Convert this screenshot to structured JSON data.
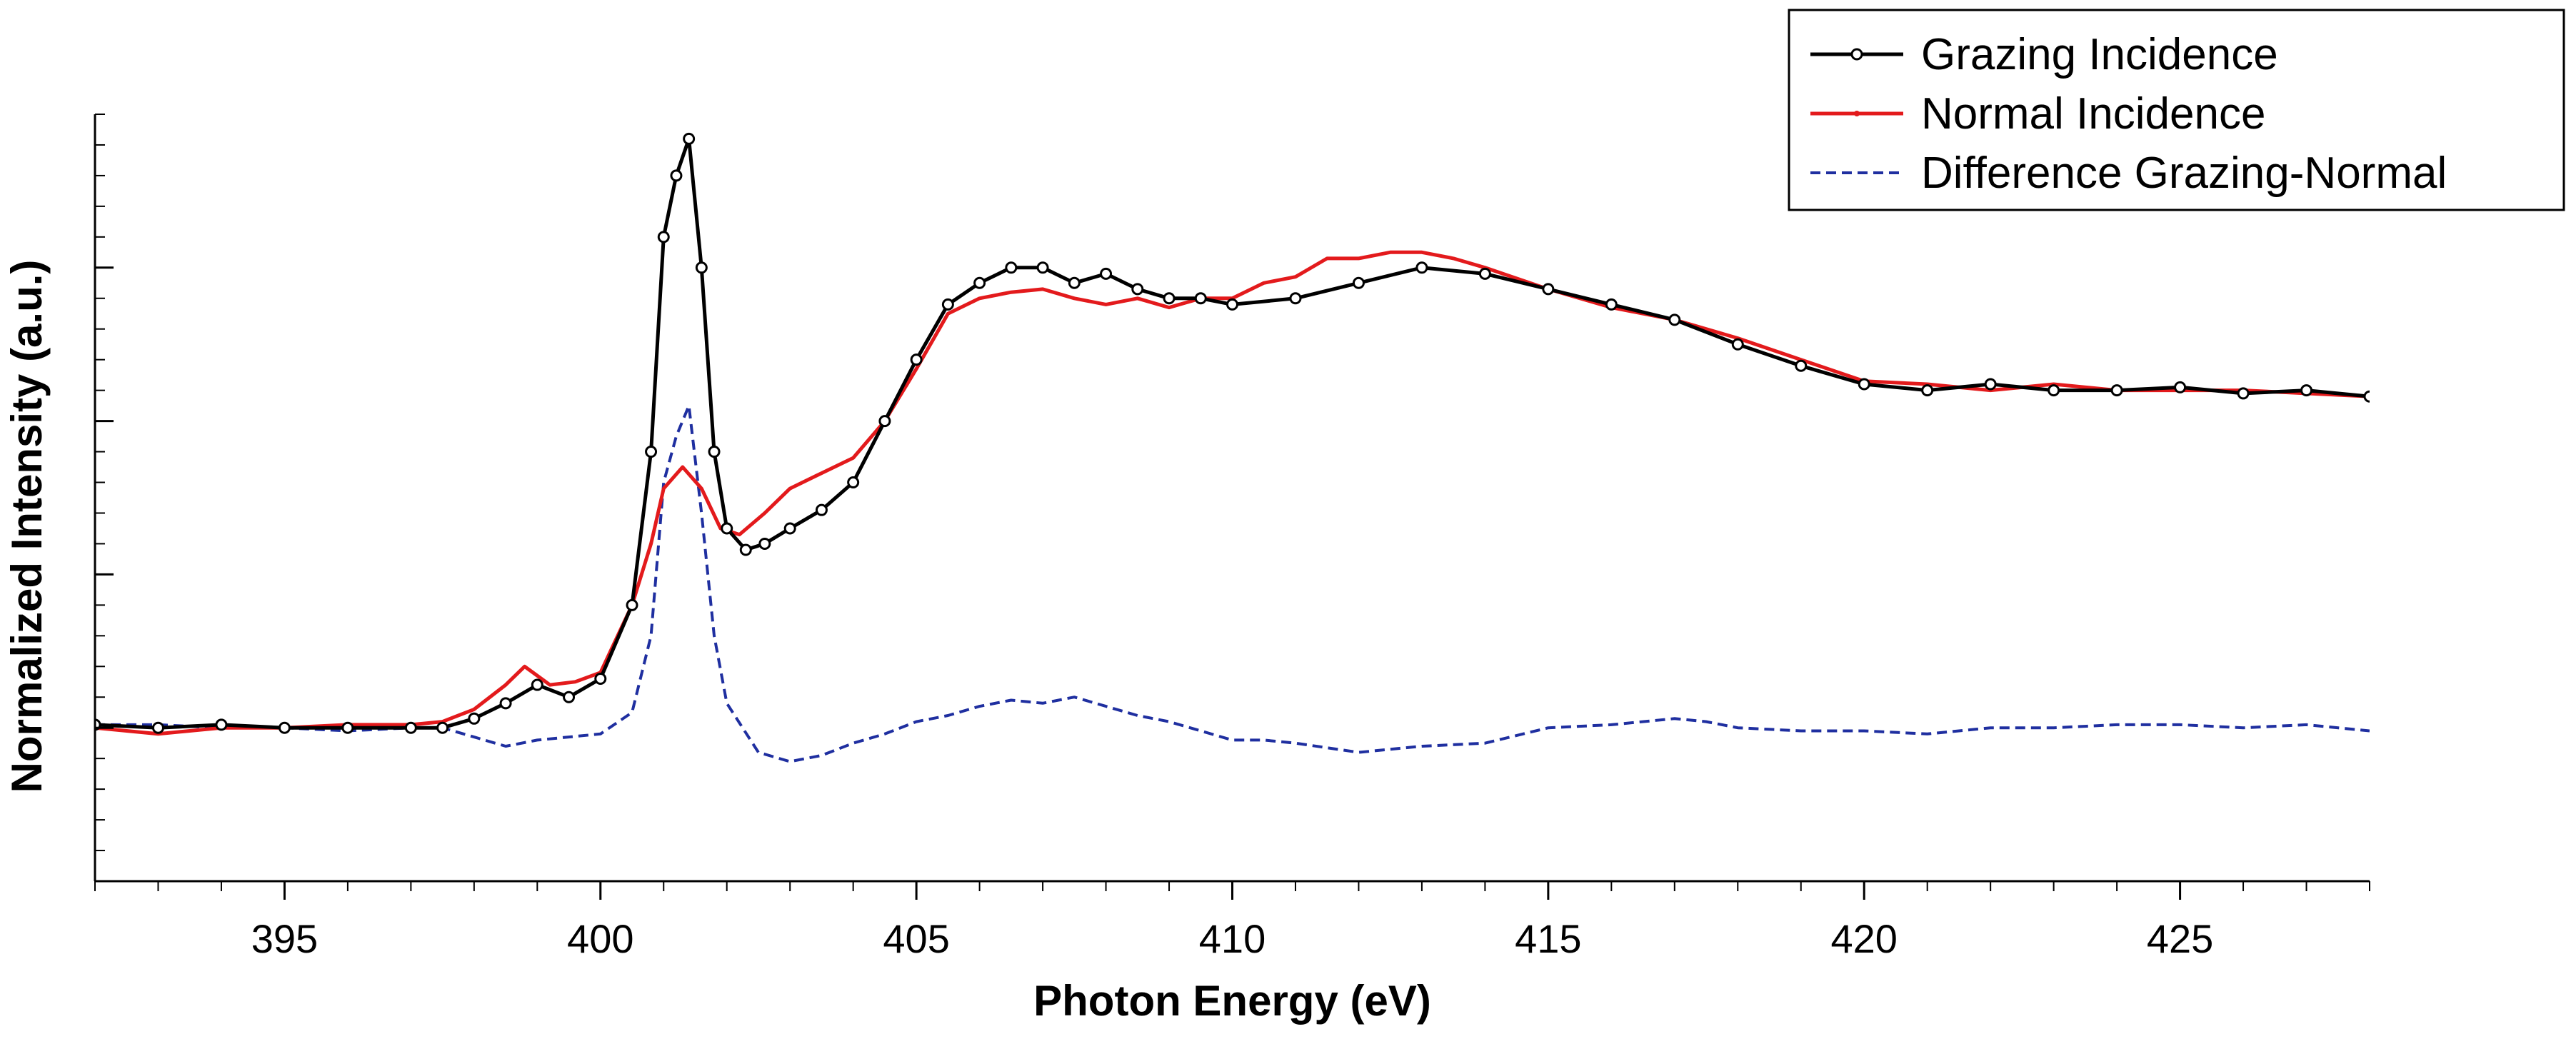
{
  "chart_data": {
    "type": "line",
    "title": "",
    "xlabel": "Photon Energy (eV)",
    "ylabel": "Normalized Intensity (a.u.)",
    "xlim": [
      392,
      428
    ],
    "ylim": [
      -0.5,
      2.0
    ],
    "xticks": [
      395,
      400,
      405,
      410,
      415,
      420,
      425
    ],
    "xtick_labels": [
      "395",
      "400",
      "405",
      "410",
      "415",
      "420",
      "425"
    ],
    "x_minor_step": 1,
    "yticks": [
      0,
      0.5,
      1.0,
      1.5
    ],
    "y_minor_step": 0.1,
    "y_tick_labels_shown": false,
    "grid": false,
    "legend_position": "top-right",
    "series": [
      {
        "name": "Grazing Incidence",
        "color": "#000000",
        "dash": "solid",
        "marker": "open-circle",
        "points": [
          [
            392.0,
            0.01
          ],
          [
            393.0,
            0.0
          ],
          [
            394.0,
            0.01
          ],
          [
            395.0,
            0.0
          ],
          [
            396.0,
            0.0
          ],
          [
            397.0,
            0.0
          ],
          [
            397.5,
            0.0
          ],
          [
            398.0,
            0.03
          ],
          [
            398.5,
            0.08
          ],
          [
            399.0,
            0.14
          ],
          [
            399.5,
            0.1
          ],
          [
            400.0,
            0.16
          ],
          [
            400.5,
            0.4
          ],
          [
            400.8,
            0.9
          ],
          [
            401.0,
            1.6
          ],
          [
            401.2,
            1.8
          ],
          [
            401.4,
            1.92
          ],
          [
            401.6,
            1.5
          ],
          [
            401.8,
            0.9
          ],
          [
            402.0,
            0.65
          ],
          [
            402.3,
            0.58
          ],
          [
            402.6,
            0.6
          ],
          [
            403.0,
            0.65
          ],
          [
            403.5,
            0.71
          ],
          [
            404.0,
            0.8
          ],
          [
            404.5,
            1.0
          ],
          [
            405.0,
            1.2
          ],
          [
            405.5,
            1.38
          ],
          [
            406.0,
            1.45
          ],
          [
            406.5,
            1.5
          ],
          [
            407.0,
            1.5
          ],
          [
            407.5,
            1.45
          ],
          [
            408.0,
            1.48
          ],
          [
            408.5,
            1.43
          ],
          [
            409.0,
            1.4
          ],
          [
            409.5,
            1.4
          ],
          [
            410.0,
            1.38
          ],
          [
            411.0,
            1.4
          ],
          [
            412.0,
            1.45
          ],
          [
            413.0,
            1.5
          ],
          [
            414.0,
            1.48
          ],
          [
            415.0,
            1.43
          ],
          [
            416.0,
            1.38
          ],
          [
            417.0,
            1.33
          ],
          [
            418.0,
            1.25
          ],
          [
            419.0,
            1.18
          ],
          [
            420.0,
            1.12
          ],
          [
            421.0,
            1.1
          ],
          [
            422.0,
            1.12
          ],
          [
            423.0,
            1.1
          ],
          [
            424.0,
            1.1
          ],
          [
            425.0,
            1.11
          ],
          [
            426.0,
            1.09
          ],
          [
            427.0,
            1.1
          ],
          [
            428.0,
            1.08
          ]
        ]
      },
      {
        "name": "Normal Incidence",
        "color": "#e31a1c",
        "dash": "solid",
        "marker": "none",
        "points": [
          [
            392.0,
            0.0
          ],
          [
            393.0,
            -0.02
          ],
          [
            394.0,
            0.0
          ],
          [
            395.0,
            0.0
          ],
          [
            396.0,
            0.01
          ],
          [
            397.0,
            0.01
          ],
          [
            397.5,
            0.02
          ],
          [
            398.0,
            0.06
          ],
          [
            398.5,
            0.14
          ],
          [
            398.8,
            0.2
          ],
          [
            399.2,
            0.14
          ],
          [
            399.6,
            0.15
          ],
          [
            400.0,
            0.18
          ],
          [
            400.5,
            0.4
          ],
          [
            400.8,
            0.6
          ],
          [
            401.0,
            0.78
          ],
          [
            401.3,
            0.85
          ],
          [
            401.6,
            0.78
          ],
          [
            401.9,
            0.65
          ],
          [
            402.2,
            0.63
          ],
          [
            402.6,
            0.7
          ],
          [
            403.0,
            0.78
          ],
          [
            403.5,
            0.83
          ],
          [
            404.0,
            0.88
          ],
          [
            404.5,
            1.0
          ],
          [
            405.0,
            1.17
          ],
          [
            405.5,
            1.35
          ],
          [
            406.0,
            1.4
          ],
          [
            406.5,
            1.42
          ],
          [
            407.0,
            1.43
          ],
          [
            407.5,
            1.4
          ],
          [
            408.0,
            1.38
          ],
          [
            408.5,
            1.4
          ],
          [
            409.0,
            1.37
          ],
          [
            409.5,
            1.4
          ],
          [
            410.0,
            1.4
          ],
          [
            410.5,
            1.45
          ],
          [
            411.0,
            1.47
          ],
          [
            411.5,
            1.53
          ],
          [
            412.0,
            1.53
          ],
          [
            412.5,
            1.55
          ],
          [
            413.0,
            1.55
          ],
          [
            413.5,
            1.53
          ],
          [
            414.0,
            1.5
          ],
          [
            415.0,
            1.43
          ],
          [
            416.0,
            1.37
          ],
          [
            417.0,
            1.33
          ],
          [
            418.0,
            1.27
          ],
          [
            419.0,
            1.2
          ],
          [
            420.0,
            1.13
          ],
          [
            421.0,
            1.12
          ],
          [
            422.0,
            1.1
          ],
          [
            423.0,
            1.12
          ],
          [
            424.0,
            1.1
          ],
          [
            425.0,
            1.1
          ],
          [
            426.0,
            1.1
          ],
          [
            427.0,
            1.09
          ],
          [
            428.0,
            1.08
          ]
        ]
      },
      {
        "name": "Difference Grazing-Normal",
        "color": "#1f2fa0",
        "dash": "dashed",
        "marker": "none",
        "points": [
          [
            392.0,
            0.01
          ],
          [
            393.0,
            0.01
          ],
          [
            394.0,
            0.0
          ],
          [
            395.0,
            0.0
          ],
          [
            396.0,
            -0.01
          ],
          [
            397.0,
            0.0
          ],
          [
            397.5,
            0.0
          ],
          [
            398.0,
            -0.03
          ],
          [
            398.5,
            -0.06
          ],
          [
            399.0,
            -0.04
          ],
          [
            399.5,
            -0.03
          ],
          [
            400.0,
            -0.02
          ],
          [
            400.5,
            0.05
          ],
          [
            400.8,
            0.3
          ],
          [
            401.0,
            0.8
          ],
          [
            401.2,
            0.95
          ],
          [
            401.4,
            1.05
          ],
          [
            401.6,
            0.7
          ],
          [
            401.8,
            0.3
          ],
          [
            402.0,
            0.08
          ],
          [
            402.5,
            -0.08
          ],
          [
            403.0,
            -0.11
          ],
          [
            403.5,
            -0.09
          ],
          [
            404.0,
            -0.05
          ],
          [
            404.5,
            -0.02
          ],
          [
            405.0,
            0.02
          ],
          [
            405.5,
            0.04
          ],
          [
            406.0,
            0.07
          ],
          [
            406.5,
            0.09
          ],
          [
            407.0,
            0.08
          ],
          [
            407.5,
            0.1
          ],
          [
            408.0,
            0.07
          ],
          [
            408.5,
            0.04
          ],
          [
            409.0,
            0.02
          ],
          [
            409.5,
            -0.01
          ],
          [
            410.0,
            -0.04
          ],
          [
            410.5,
            -0.04
          ],
          [
            411.0,
            -0.05
          ],
          [
            412.0,
            -0.08
          ],
          [
            413.0,
            -0.06
          ],
          [
            414.0,
            -0.05
          ],
          [
            415.0,
            0.0
          ],
          [
            416.0,
            0.01
          ],
          [
            417.0,
            0.03
          ],
          [
            417.5,
            0.02
          ],
          [
            418.0,
            0.0
          ],
          [
            419.0,
            -0.01
          ],
          [
            420.0,
            -0.01
          ],
          [
            421.0,
            -0.02
          ],
          [
            422.0,
            0.0
          ],
          [
            423.0,
            0.0
          ],
          [
            424.0,
            0.01
          ],
          [
            425.0,
            0.01
          ],
          [
            426.0,
            0.0
          ],
          [
            427.0,
            0.01
          ],
          [
            428.0,
            -0.01
          ]
        ]
      }
    ]
  }
}
